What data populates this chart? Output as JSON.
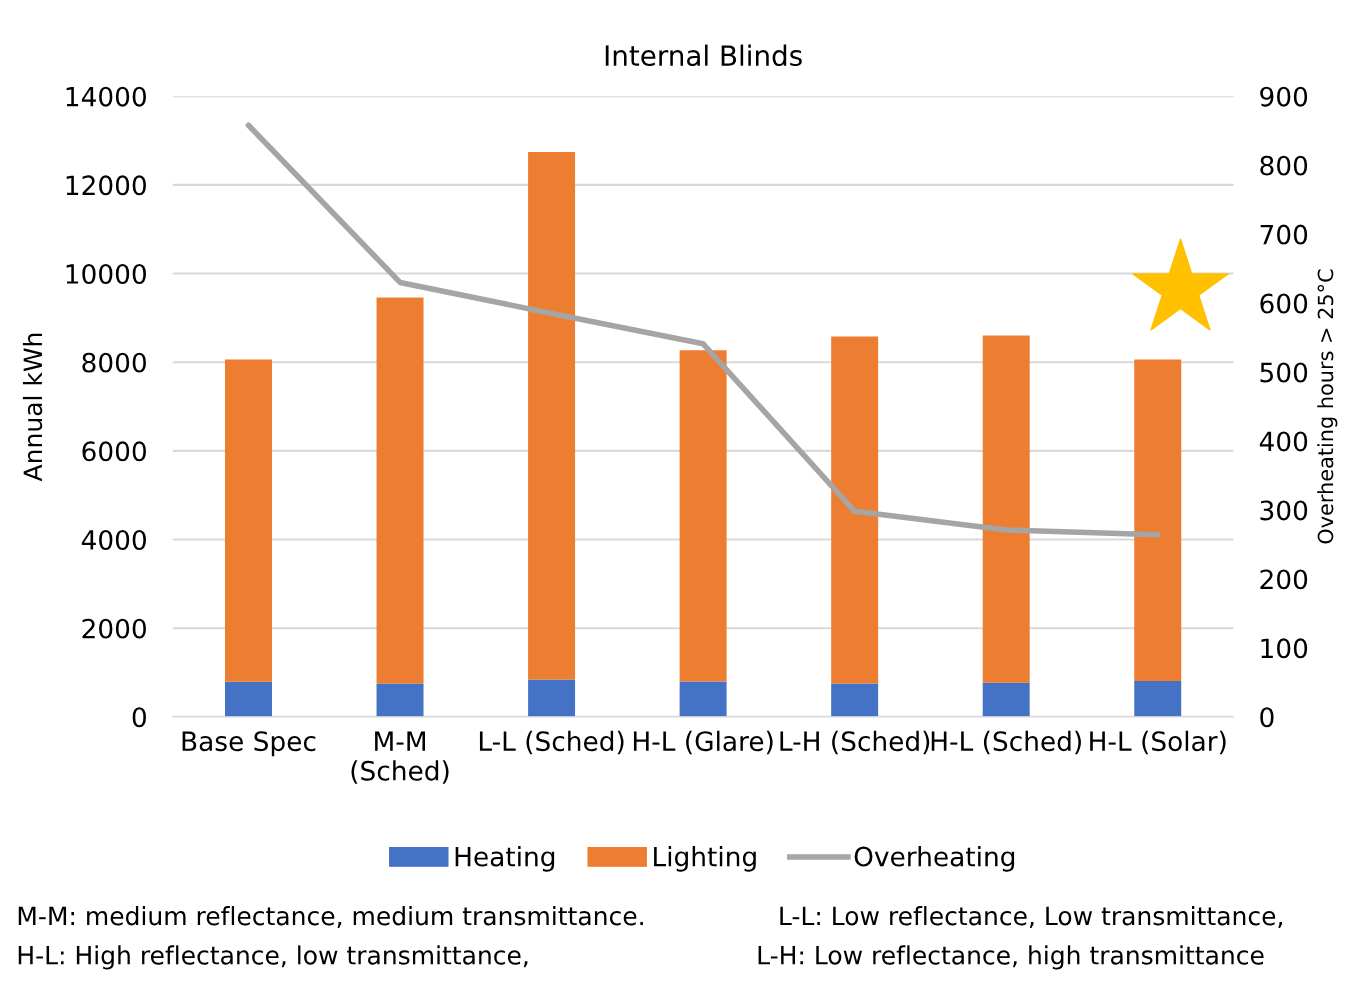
{
  "chart_data": {
    "type": "bar",
    "title": "Internal Blinds",
    "ylabel": "Annual kWh",
    "y2label": "Overheating hours > 25°C",
    "categories": [
      "Base Spec",
      "M-M\n(Sched)",
      "L-L (Sched)",
      "H-L (Glare)",
      "L-H (Sched)",
      "H-L (Sched)",
      "H-L (Solar)"
    ],
    "stacked": true,
    "series": [
      {
        "name": "Heating",
        "color": "#4472c4",
        "values": [
          790,
          750,
          840,
          800,
          750,
          770,
          810
        ]
      },
      {
        "name": "Lighting",
        "color": "#ed7d31",
        "values": [
          7270,
          8710,
          11900,
          7470,
          7830,
          7830,
          7250
        ]
      },
      {
        "name": "Overheating",
        "type": "line",
        "axis": "y2",
        "color": "#a5a5a5",
        "marker": "none",
        "values": [
          858,
          630,
          585,
          541,
          298,
          271,
          264
        ]
      }
    ],
    "ylim": [
      0,
      14000
    ],
    "yticks": [
      0,
      2000,
      4000,
      6000,
      8000,
      10000,
      12000,
      14000
    ],
    "y2lim": [
      0,
      900
    ],
    "y2ticks": [
      0,
      100,
      200,
      300,
      400,
      500,
      600,
      700,
      800,
      900
    ],
    "grid": "y",
    "legend": "bottom",
    "annotations": [
      "M-M: medium reflectance, medium transmittance.",
      "L-L: Low reflectance, Low transmittance,",
      "H-L: High reflectance, low transmittance,",
      "L-H: Low reflectance, high transmittance"
    ]
  }
}
